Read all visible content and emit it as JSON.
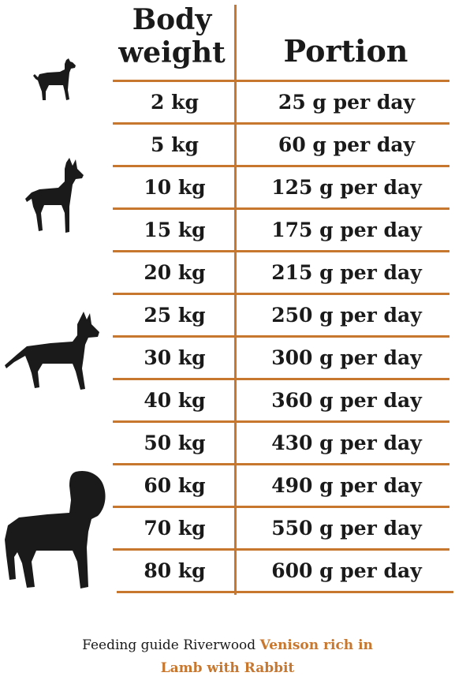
{
  "header": {
    "weight_line1": "Body",
    "weight_line2": "weight",
    "portion": "Portion"
  },
  "rows": [
    {
      "weight": "2 kg",
      "portion": "25 g per day"
    },
    {
      "weight": "5 kg",
      "portion": "60 g per day"
    },
    {
      "weight": "10 kg",
      "portion": "125 g per day"
    },
    {
      "weight": "15 kg",
      "portion": "175 g per day"
    },
    {
      "weight": "20 kg",
      "portion": "215 g per day"
    },
    {
      "weight": "25 kg",
      "portion": "250 g per day"
    },
    {
      "weight": "30 kg",
      "portion": "300 g per day"
    },
    {
      "weight": "40 kg",
      "portion": "360 g per day"
    },
    {
      "weight": "50 kg",
      "portion": "430 g per day"
    },
    {
      "weight": "60 kg",
      "portion": "490 g per day"
    },
    {
      "weight": "70 kg",
      "portion": "550 g per day"
    },
    {
      "weight": "80 kg",
      "portion": "600 g per day"
    }
  ],
  "footer": {
    "prefix": "Feeding guide Riverwood",
    "product_line1": "Venison rich in",
    "product_line2": "Lamb with Rabbit"
  },
  "icons": [
    "small-dog-icon",
    "medium-dog-icon",
    "large-dog-icon",
    "giant-dog-icon"
  ],
  "colors": {
    "accent": "#c8772e",
    "text": "#1a1a1a",
    "background": "#ffffff"
  }
}
